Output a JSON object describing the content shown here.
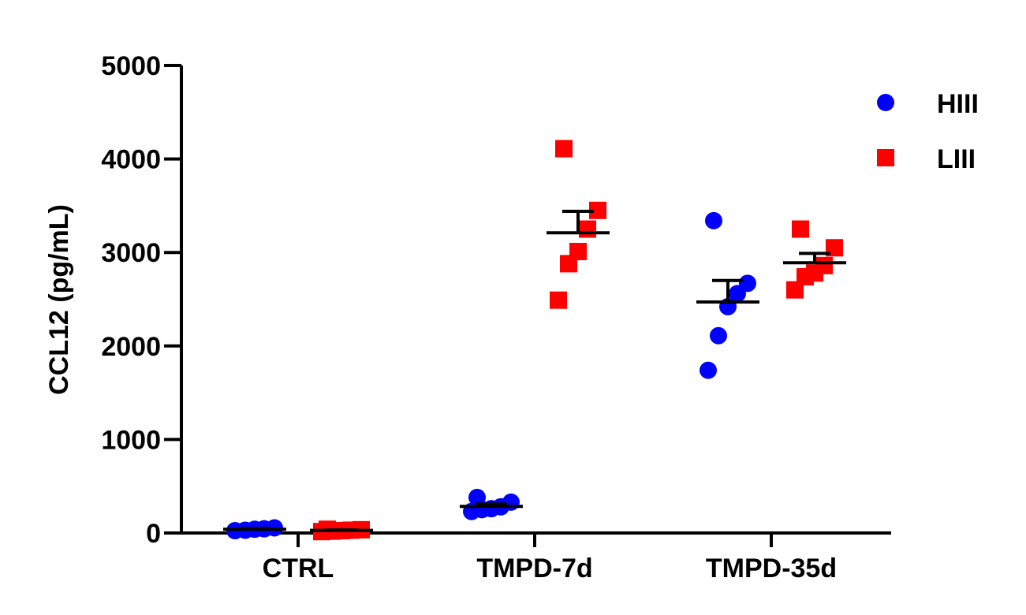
{
  "chart_data": {
    "type": "scatter",
    "ylabel": "CCL12 (pg/mL)",
    "xlabel": "",
    "ylim": [
      0,
      5000
    ],
    "yticks": [
      "0",
      "1000",
      "2000",
      "3000",
      "4000",
      "5000"
    ],
    "categories": [
      "CTRL",
      "TMPD-7d",
      "TMPD-35d"
    ],
    "legend_position": "top-right",
    "series": [
      {
        "name": "HIII",
        "color": "#0000ff",
        "marker": "circle",
        "points": [
          [
            25,
            30,
            40,
            45,
            55
          ],
          [
            230,
            250,
            260,
            280,
            330,
            380
          ],
          [
            1740,
            2110,
            2420,
            2560,
            2670,
            3340
          ]
        ],
        "mean": [
          40,
          285,
          2470
        ],
        "sem": [
          8,
          25,
          230
        ]
      },
      {
        "name": "LIII",
        "color": "#ff0000",
        "marker": "square",
        "points": [
          [
            15,
            20,
            25,
            30,
            35,
            40
          ],
          [
            2490,
            2880,
            3010,
            3250,
            3450,
            4110
          ],
          [
            2600,
            2740,
            2780,
            2860,
            3050,
            3250
          ]
        ],
        "mean": [
          28,
          3210,
          2890
        ],
        "sem": [
          5,
          230,
          100
        ]
      }
    ]
  }
}
